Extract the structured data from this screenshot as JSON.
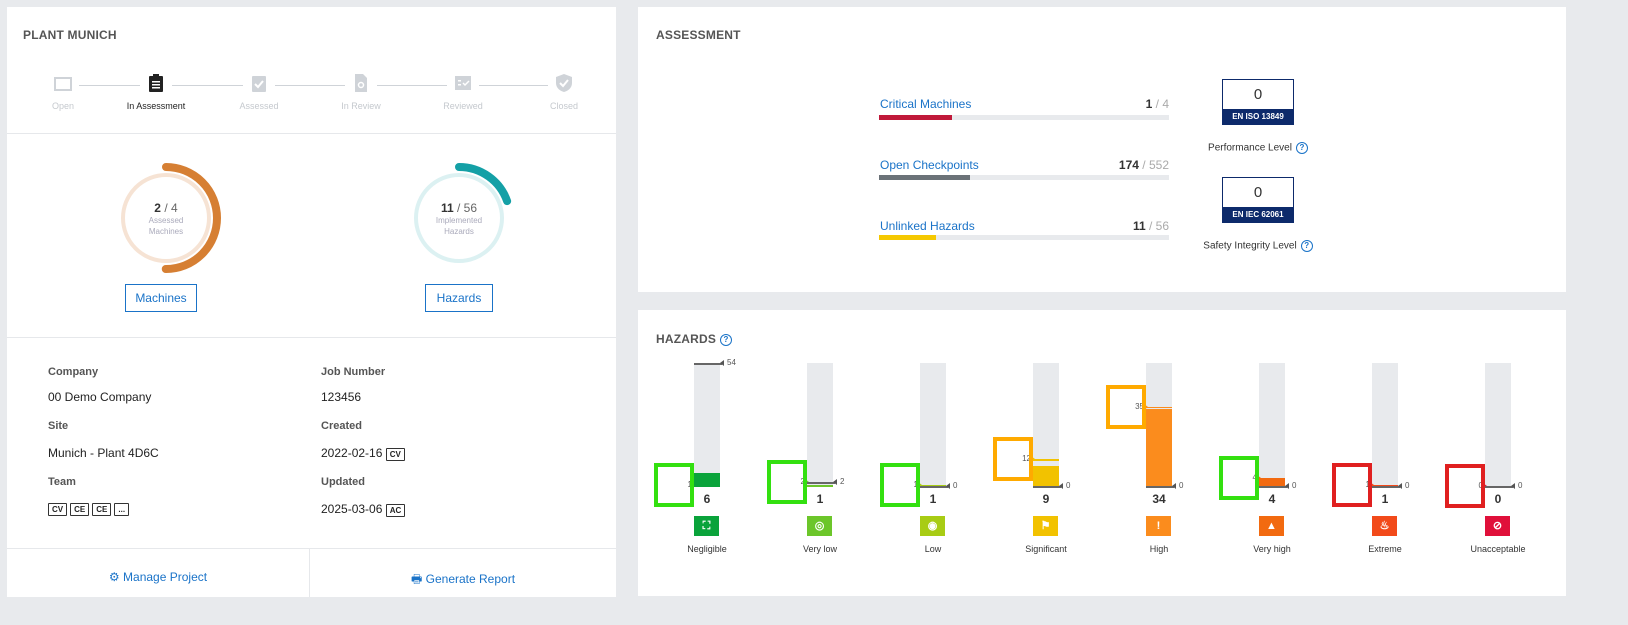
{
  "plant": {
    "title": "PLANT MUNICH",
    "steps": [
      {
        "label": "Open",
        "icon": "folder-icon"
      },
      {
        "label": "In Assessment",
        "icon": "clipboard-icon"
      },
      {
        "label": "Assessed",
        "icon": "clipboard-check-icon"
      },
      {
        "label": "In Review",
        "icon": "file-search-icon"
      },
      {
        "label": "Reviewed",
        "icon": "checklist-icon"
      },
      {
        "label": "Closed",
        "icon": "shield-check-icon"
      }
    ],
    "active_step": "In Assessment",
    "machines_gauge": {
      "done": "2",
      "total": "4",
      "sep": " / ",
      "caption1": "Assessed",
      "caption2": "Machines",
      "color": "#d67f33",
      "fraction": 0.5
    },
    "hazards_gauge": {
      "done": "11",
      "total": "56",
      "sep": " / ",
      "caption1": "Implemented",
      "caption2": "Hazards",
      "color": "#14a0a6",
      "fraction": 0.196
    },
    "machines_button": "Machines",
    "hazards_button": "Hazards",
    "info": {
      "company_label": "Company",
      "company": "00 Demo Company",
      "job_label": "Job Number",
      "job": "123456",
      "site_label": "Site",
      "site": "Munich - Plant 4D6C",
      "created_label": "Created",
      "created": "2022-02-16",
      "created_by": "CV",
      "team_label": "Team",
      "team": [
        "CV",
        "CE",
        "CE",
        "..."
      ],
      "updated_label": "Updated",
      "updated": "2025-03-06",
      "updated_by": "AC"
    },
    "manage_button": "Manage Project",
    "report_button": "Generate Report"
  },
  "assessment": {
    "title": "ASSESSMENT",
    "metrics": [
      {
        "label": "Critical Machines",
        "value": "1",
        "total": "4",
        "color": "#c0193a",
        "fraction": 0.25
      },
      {
        "label": "Open Checkpoints",
        "value": "174",
        "total": "552",
        "color": "#6b7278",
        "fraction": 0.315
      },
      {
        "label": "Unlinked Hazards",
        "value": "11",
        "total": "56",
        "color": "#f5c800",
        "fraction": 0.196
      }
    ],
    "performance": {
      "value": "0",
      "standard": "EN ISO 13849",
      "label": "Performance Level"
    },
    "sil": {
      "value": "0",
      "standard": "EN IEC 62061",
      "label": "Safety Integrity Level"
    }
  },
  "hazards": {
    "title": "HAZARDS",
    "chart_data": {
      "type": "bar",
      "categories": [
        "Negligible",
        "Very low",
        "Low",
        "Significant",
        "High",
        "Very high",
        "Extreme",
        "Unacceptable"
      ],
      "values": [
        6,
        1,
        1,
        9,
        34,
        4,
        1,
        0
      ],
      "left_markers": [
        1,
        2,
        1,
        12,
        35,
        4,
        1,
        0
      ],
      "right_markers": [
        54,
        2,
        0,
        0,
        0,
        0,
        0,
        0
      ],
      "ylim": [
        0,
        54
      ],
      "colors": [
        "#0aa33b",
        "#6cc62a",
        "#a8cc14",
        "#f2c200",
        "#fb8c1d",
        "#f26a10",
        "#f24a1a",
        "#e0103a"
      ],
      "icons": [
        "corners-icon",
        "focus-icon",
        "target-icon",
        "flag-icon",
        "exclamation-icon",
        "warning-triangle-icon",
        "fire-icon",
        "prohibited-icon"
      ],
      "highlight_colors": [
        "#33e010",
        "#33e010",
        "#33e010",
        "#ffaa00",
        "#ffaa00",
        "#33e010",
        "#e02020",
        "#e02020"
      ]
    }
  }
}
